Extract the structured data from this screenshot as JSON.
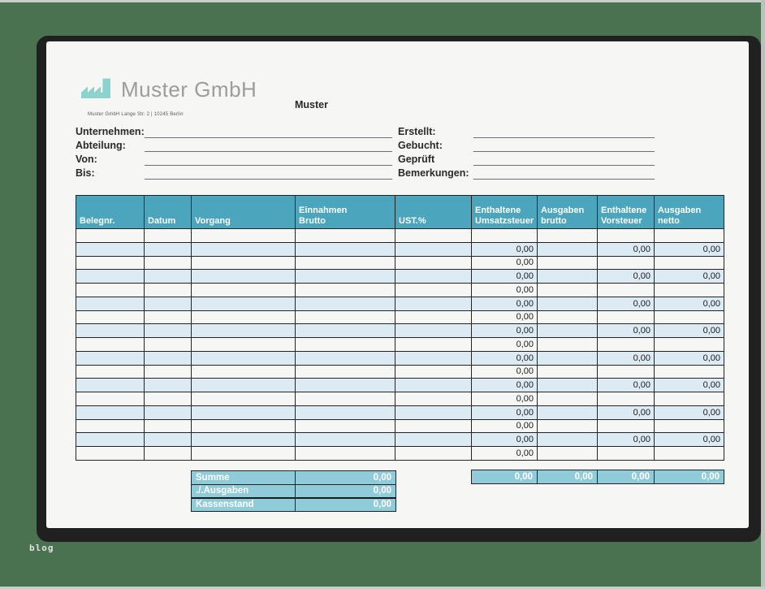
{
  "background": {
    "watermark": "blog"
  },
  "letterhead": {
    "company": "Muster GmbH",
    "address": "Muster GmbH Lange Str. 2 | 10245 Berlin",
    "doc_label": "Muster"
  },
  "form": {
    "left_fields": [
      {
        "label": "Unternehmen:",
        "value": ""
      },
      {
        "label": "Abteilung:",
        "value": ""
      },
      {
        "label": "Von:",
        "value": ""
      },
      {
        "label": "Bis:",
        "value": ""
      }
    ],
    "right_fields": [
      {
        "label": "Erstellt:",
        "value": ""
      },
      {
        "label": "Gebucht:",
        "value": ""
      },
      {
        "label": "Geprüft",
        "value": ""
      },
      {
        "label": "Bemerkungen:",
        "value": ""
      }
    ]
  },
  "table": {
    "columns": [
      "Belegnr.",
      "Datum",
      "Vorgang",
      "Einnahmen\nBrutto",
      "UST.%",
      "Enthaltene\nUmsatzsteuer",
      "Ausgaben\nbrutto",
      "Enthaltene\nVorsteuer",
      "Ausgaben\nnetto"
    ],
    "rows": [
      {
        "shade": "white",
        "height": 10,
        "cells": [
          "",
          "",
          "",
          "",
          "",
          "",
          "",
          "",
          ""
        ]
      },
      {
        "shade": "blue",
        "cells": [
          "",
          "",
          "",
          "",
          "",
          "0,00",
          "",
          "0,00",
          "0,00"
        ]
      },
      {
        "shade": "white",
        "cells": [
          "",
          "",
          "",
          "",
          "",
          "0,00",
          "",
          "",
          ""
        ]
      },
      {
        "shade": "blue",
        "cells": [
          "",
          "",
          "",
          "",
          "",
          "0,00",
          "",
          "0,00",
          "0,00"
        ]
      },
      {
        "shade": "white",
        "cells": [
          "",
          "",
          "",
          "",
          "",
          "0,00",
          "",
          "",
          ""
        ]
      },
      {
        "shade": "blue",
        "cells": [
          "",
          "",
          "",
          "",
          "",
          "0,00",
          "",
          "0,00",
          "0,00"
        ]
      },
      {
        "shade": "white",
        "cells": [
          "",
          "",
          "",
          "",
          "",
          "0,00",
          "",
          "",
          ""
        ]
      },
      {
        "shade": "blue",
        "cells": [
          "",
          "",
          "",
          "",
          "",
          "0,00",
          "",
          "0,00",
          "0,00"
        ]
      },
      {
        "shade": "white",
        "cells": [
          "",
          "",
          "",
          "",
          "",
          "0,00",
          "",
          "",
          ""
        ]
      },
      {
        "shade": "blue",
        "cells": [
          "",
          "",
          "",
          "",
          "",
          "0,00",
          "",
          "0,00",
          "0,00"
        ]
      },
      {
        "shade": "white",
        "cells": [
          "",
          "",
          "",
          "",
          "",
          "0,00",
          "",
          "",
          ""
        ]
      },
      {
        "shade": "blue",
        "cells": [
          "",
          "",
          "",
          "",
          "",
          "0,00",
          "",
          "0,00",
          "0,00"
        ]
      },
      {
        "shade": "white",
        "cells": [
          "",
          "",
          "",
          "",
          "",
          "0,00",
          "",
          "",
          ""
        ]
      },
      {
        "shade": "blue",
        "cells": [
          "",
          "",
          "",
          "",
          "",
          "0,00",
          "",
          "0,00",
          "0,00"
        ]
      },
      {
        "shade": "white",
        "cells": [
          "",
          "",
          "",
          "",
          "",
          "0,00",
          "",
          "",
          ""
        ]
      },
      {
        "shade": "blue",
        "cells": [
          "",
          "",
          "",
          "",
          "",
          "0,00",
          "",
          "0,00",
          "0,00"
        ]
      },
      {
        "shade": "white",
        "cells": [
          "",
          "",
          "",
          "",
          "",
          "0,00",
          "",
          "",
          ""
        ]
      }
    ]
  },
  "summary_left": {
    "rows": [
      [
        "Summe",
        "0,00"
      ],
      [
        "./.Ausgaben",
        "0,00"
      ],
      [
        "Kassenstand",
        "0,00"
      ]
    ]
  },
  "summary_right": {
    "values": [
      "0,00",
      "0,00",
      "0,00",
      "0,00"
    ]
  },
  "colors": {
    "background_green": "#4a7150",
    "frame_black": "#1f201f",
    "header_teal": "#4ba6bd",
    "summary_teal": "#8fcbd9",
    "row_blue": "#dcebf3",
    "row_white": "#f6f6f4",
    "logo_teal": "#8ad4cd"
  }
}
